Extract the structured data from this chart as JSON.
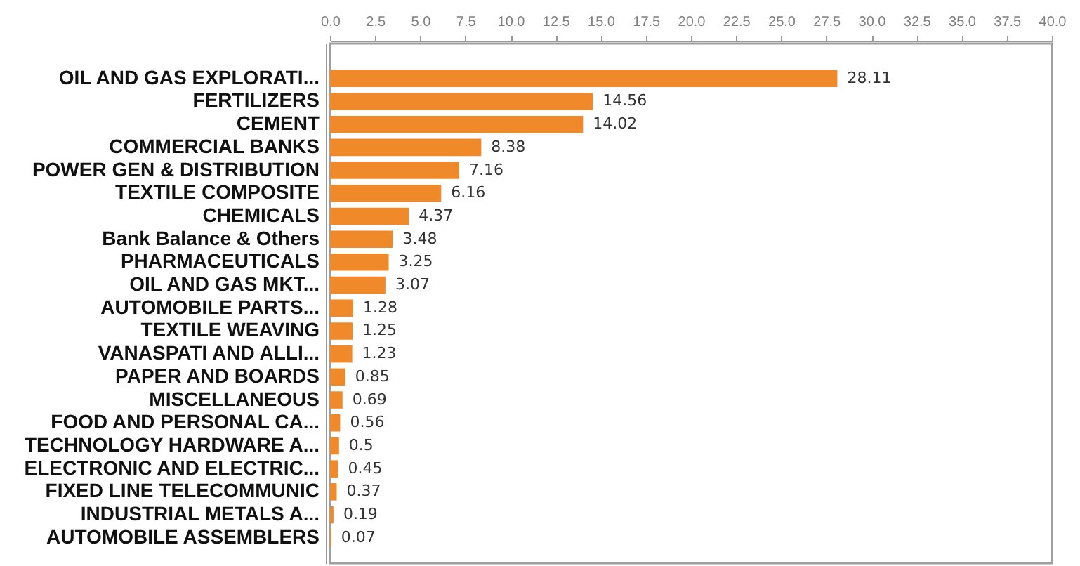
{
  "chart_data": {
    "type": "bar",
    "orientation": "horizontal",
    "categories": [
      "OIL AND GAS EXPLORATI...",
      "FERTILIZERS",
      "CEMENT",
      "COMMERCIAL BANKS",
      "POWER GEN & DISTRIBUTION",
      "TEXTILE COMPOSITE",
      "CHEMICALS",
      "Bank Balance & Others",
      "PHARMACEUTICALS",
      "OIL AND GAS MKT...",
      "AUTOMOBILE PARTS...",
      "TEXTILE WEAVING",
      "VANASPATI AND ALLI...",
      "PAPER AND BOARDS",
      "MISCELLANEOUS",
      "FOOD AND PERSONAL CA...",
      "TECHNOLOGY HARDWARE A...",
      "ELECTRONIC AND ELECTRIC...",
      "FIXED LINE TELECOMMUNIC",
      "INDUSTRIAL METALS A...",
      "AUTOMOBILE ASSEMBLERS"
    ],
    "values": [
      28.11,
      14.56,
      14.02,
      8.38,
      7.16,
      6.16,
      4.37,
      3.48,
      3.25,
      3.07,
      1.28,
      1.25,
      1.23,
      0.85,
      0.69,
      0.56,
      0.5,
      0.45,
      0.37,
      0.19,
      0.07
    ],
    "color": "#f0892a",
    "xlim": [
      0,
      40
    ],
    "xticks": [
      {
        "value": 0,
        "label": "0.0"
      },
      2.5,
      {
        "value": 5,
        "label": "5.0"
      },
      7.5,
      {
        "value": 10,
        "label": "10.0"
      },
      12.5,
      {
        "value": 15,
        "label": "15.0"
      },
      17.5,
      {
        "value": 20,
        "label": "20.0"
      },
      22.5,
      {
        "value": 25,
        "label": "25.0"
      },
      27.5,
      {
        "value": 30,
        "label": "30.0"
      },
      32.5,
      {
        "value": 35,
        "label": "35.0"
      },
      37.5,
      {
        "value": 40,
        "label": "40.0"
      }
    ],
    "data_labels": true
  }
}
